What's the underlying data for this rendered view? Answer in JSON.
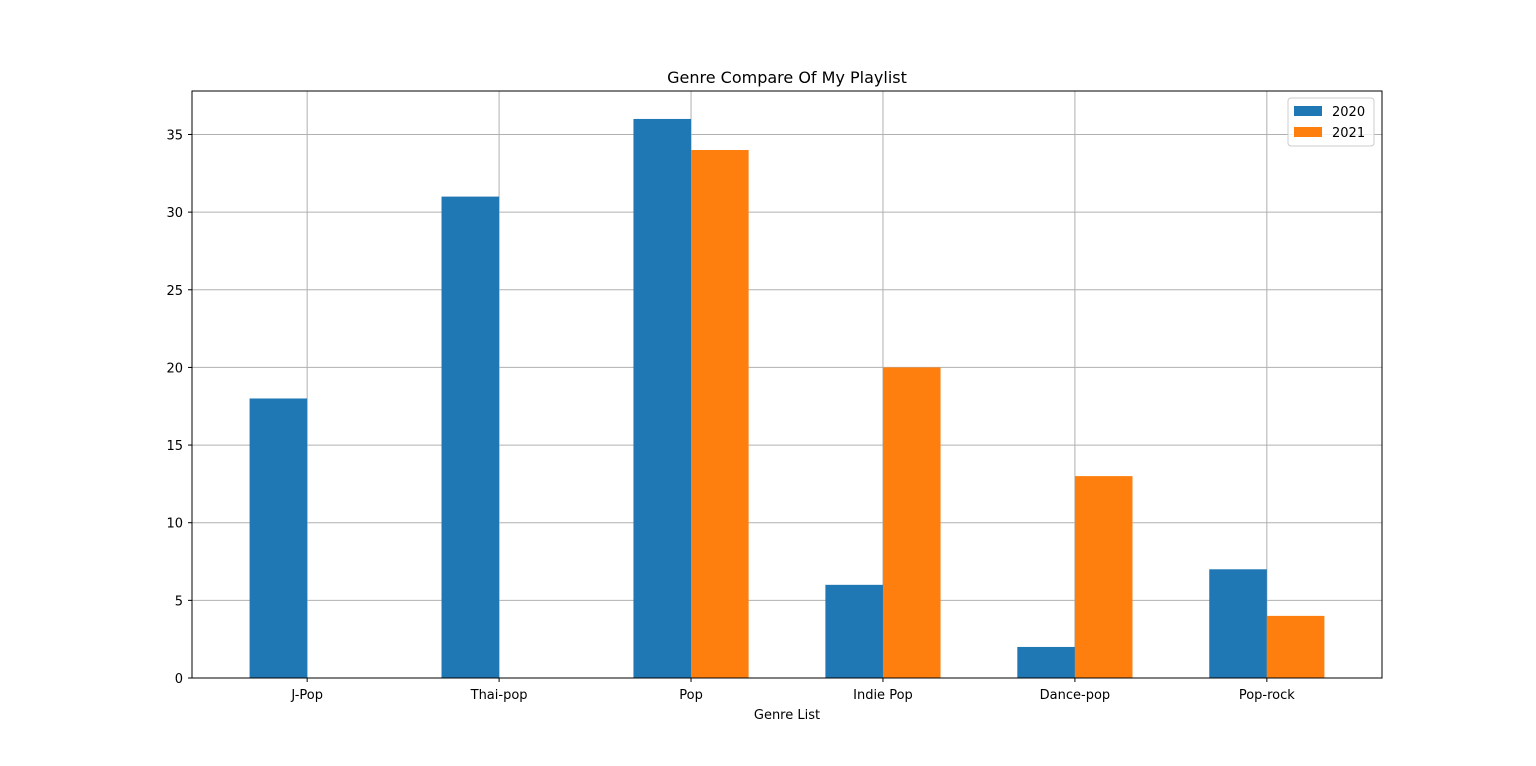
{
  "chart_data": {
    "type": "bar",
    "title": "Genre Compare Of My Playlist",
    "xlabel": "Genre List",
    "ylabel": "",
    "categories": [
      "J-Pop",
      "Thai-pop",
      "Pop",
      "Indie Pop",
      "Dance-pop",
      "Pop-rock"
    ],
    "series": [
      {
        "name": "2020",
        "color": "#1f77b4",
        "values": [
          18,
          31,
          36,
          6,
          2,
          7
        ]
      },
      {
        "name": "2021",
        "color": "#ff7f0e",
        "values": [
          0,
          0,
          34,
          20,
          13,
          4
        ]
      }
    ],
    "ylim": [
      0,
      37.8
    ],
    "yticks": [
      0,
      5,
      10,
      15,
      20,
      25,
      30,
      35
    ],
    "grid": true,
    "legend_position": "top-right"
  }
}
